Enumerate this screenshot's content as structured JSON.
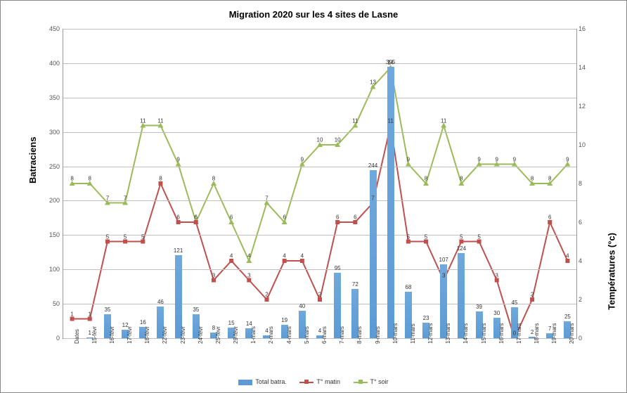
{
  "title": "Migration 2020 sur les 4 sites de Lasne",
  "y_left_label": "Batraciens",
  "y_right_label": "Températures (°c)",
  "y_left": {
    "min": 0,
    "max": 450,
    "step": 50
  },
  "y_right": {
    "min": 0,
    "max": 16,
    "step": 2
  },
  "bar_color": "#5b9bd5",
  "line1_color": "#c0504d",
  "line2_color": "#9bbb59",
  "grid_color": "#bfbfbf",
  "legend": {
    "bar": "Total batra.",
    "line1": "T° matin",
    "line2": "T° soir"
  },
  "categories": [
    "Dates",
    "15-févr",
    "16-févr",
    "17-févr",
    "18-févr",
    "22-févr",
    "23-févr",
    "24-févr",
    "25-févr",
    "29-févr",
    "1-mars",
    "2-mars",
    "4-mars",
    "5-mars",
    "6-mars",
    "7-mars",
    "8-mars",
    "9-mars",
    "10-mars",
    "11-mars",
    "12-mars",
    "13-mars",
    "14-mars",
    "15-mars",
    "16-mars",
    "17-mars",
    "18-mars",
    "19-mars",
    "20-mars"
  ],
  "bars": [
    null,
    1,
    35,
    12,
    16,
    46,
    121,
    35,
    8,
    15,
    14,
    4,
    19,
    40,
    4,
    95,
    72,
    244,
    395,
    68,
    23,
    107,
    124,
    39,
    30,
    45,
    2,
    7,
    25
  ],
  "t_matin": [
    1,
    1,
    5,
    5,
    5,
    8,
    6,
    6,
    3,
    4,
    3,
    2,
    4,
    4,
    2,
    6,
    6,
    7,
    11,
    5,
    5,
    3,
    5,
    5,
    3,
    0,
    2,
    6,
    4
  ],
  "t_soir": [
    8,
    8,
    7,
    7,
    11,
    11,
    9,
    6,
    8,
    6,
    4,
    7,
    6,
    9,
    10,
    10,
    11,
    13,
    14,
    9,
    8,
    11,
    8,
    9,
    9,
    9,
    8,
    8,
    9
  ]
}
